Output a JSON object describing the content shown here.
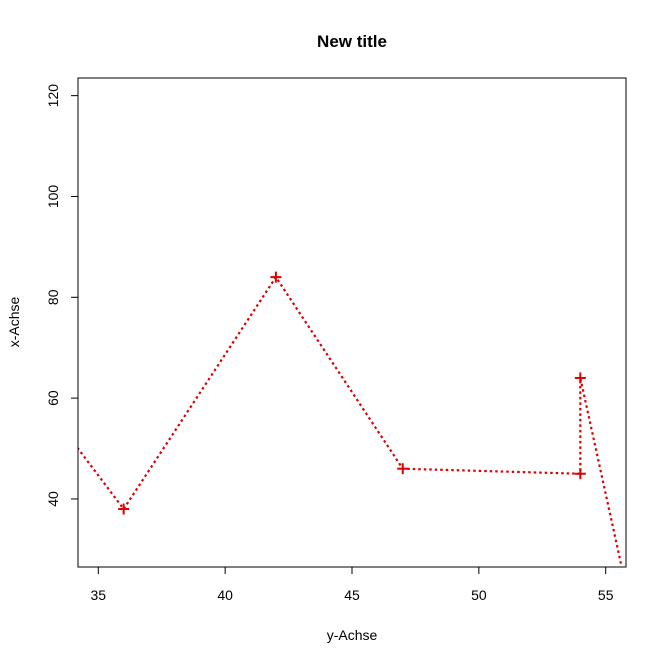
{
  "chart_data": {
    "type": "line",
    "title": "New title",
    "xlabel": "y-Achse",
    "ylabel": "x-Achse",
    "xlim": [
      34.2,
      55.8
    ],
    "ylim": [
      26.5,
      123.5
    ],
    "x_ticks": [
      35,
      40,
      45,
      50,
      55
    ],
    "y_ticks": [
      40,
      60,
      80,
      100,
      120
    ],
    "grid": false,
    "line_style": "dotted",
    "marker": "plus",
    "color": "#dd0000",
    "series": [
      {
        "x": [
          33.0,
          36.0,
          42.0,
          47.0,
          54.0,
          54.0,
          56.0
        ],
        "y": [
          58.0,
          38.0,
          84.0,
          46.0,
          45.0,
          64.0,
          18.0
        ],
        "marker_visible": [
          false,
          true,
          true,
          true,
          true,
          true,
          false
        ]
      }
    ]
  }
}
